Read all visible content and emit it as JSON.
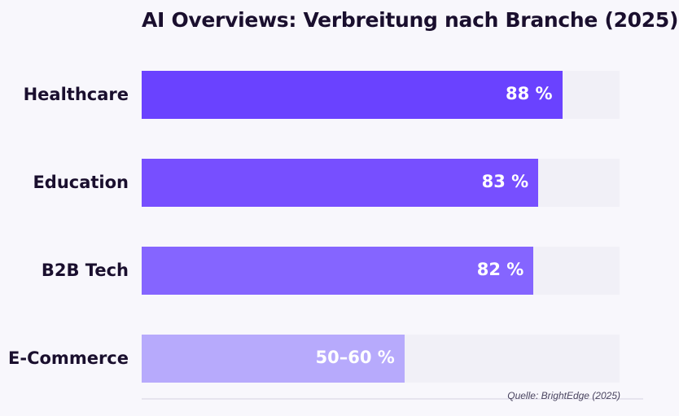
{
  "chart_data": {
    "type": "bar",
    "orientation": "horizontal",
    "title": "AI Overviews: Verbreitung nach Branche (2025)",
    "unit": "%",
    "xlim": [
      0,
      100
    ],
    "grid": false,
    "categories": [
      "Healthcare",
      "Education",
      "B2B Tech",
      "E-Commerce"
    ],
    "values": [
      88,
      83,
      82,
      55
    ],
    "value_labels": [
      "88 %",
      "83 %",
      "82 %",
      "50–60 %"
    ],
    "ranges": [
      null,
      null,
      null,
      [
        50,
        60
      ]
    ],
    "colors": [
      "#6a42ff",
      "#774fff",
      "#8565ff",
      "#b7aafc"
    ],
    "track_color": "#f1f0f7",
    "source": "Quelle: BrightEdge (2025)"
  }
}
